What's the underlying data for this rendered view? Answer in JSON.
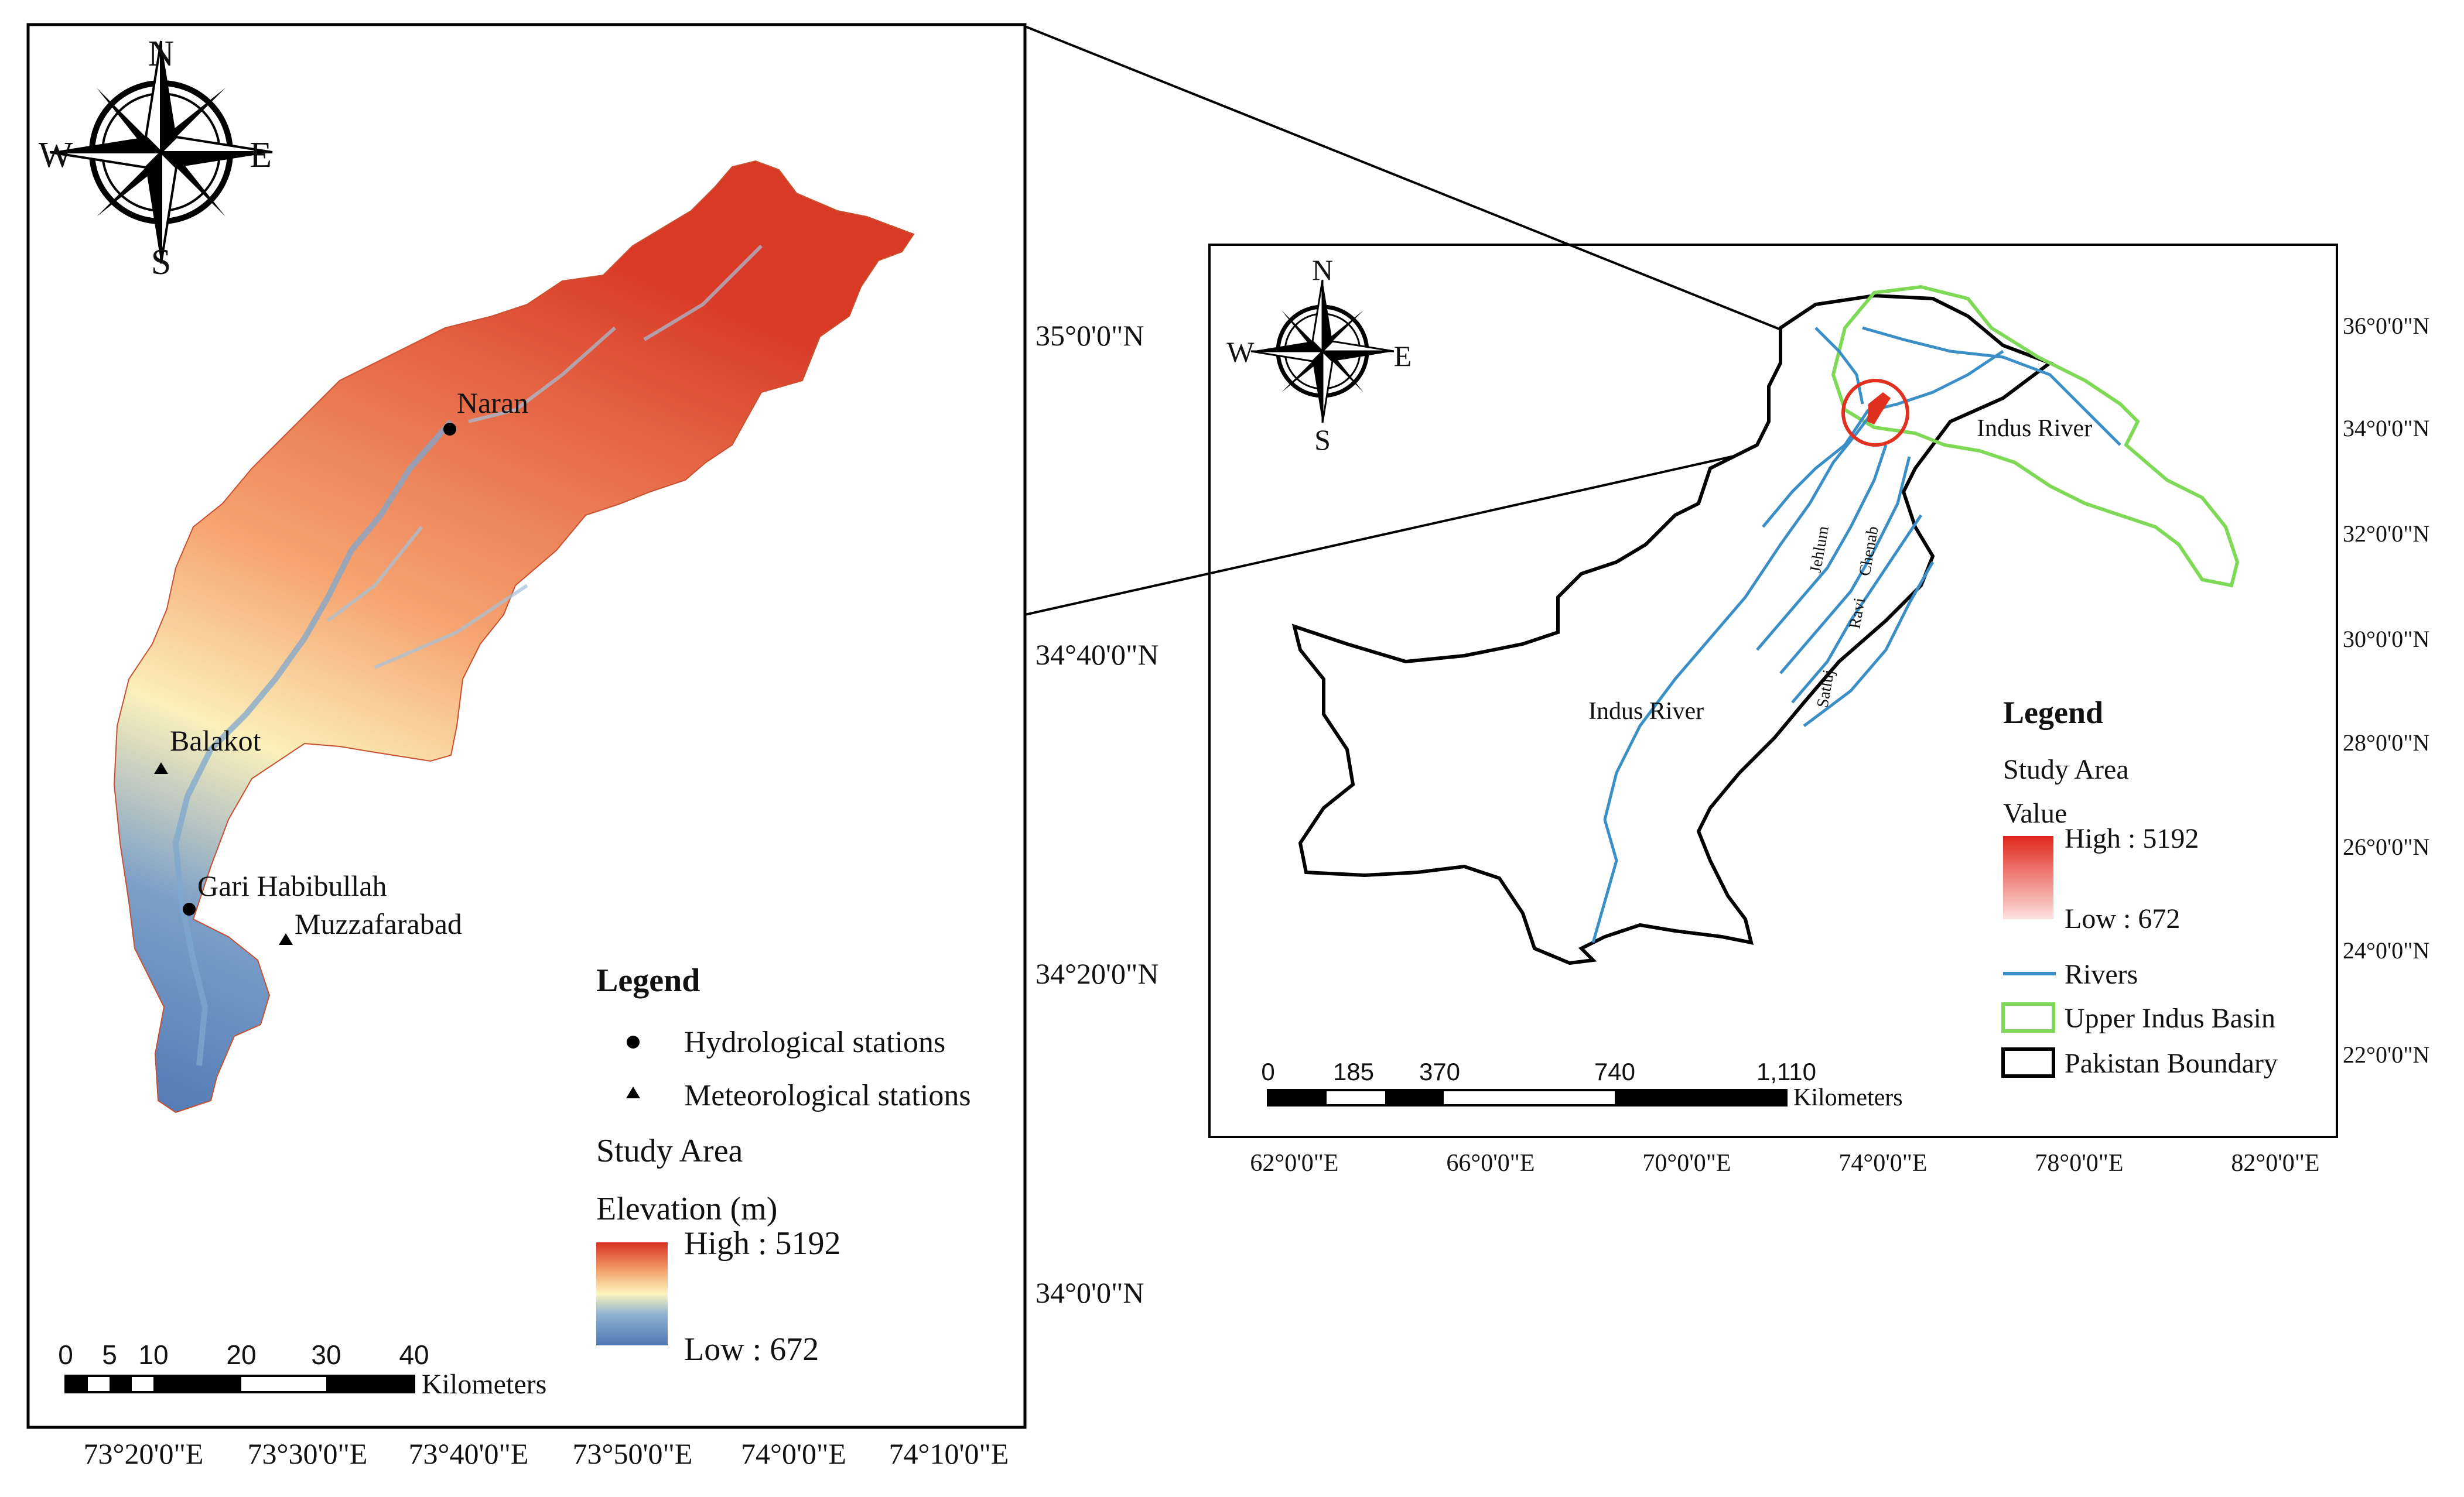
{
  "left_map": {
    "compass": {
      "n": "N",
      "s": "S",
      "e": "E",
      "w": "W"
    },
    "lat_labels": [
      "35°0'0\"N",
      "34°40'0\"N",
      "34°20'0\"N",
      "34°0'0\"N"
    ],
    "lon_labels": [
      "73°20'0\"E",
      "73°30'0\"E",
      "73°40'0\"E",
      "73°50'0\"E",
      "74°0'0\"E",
      "74°10'0\"E"
    ],
    "stations": {
      "naran": "Naran",
      "balakot": "Balakot",
      "gari_habibullah": "Gari Habibullah",
      "muzzafarabad": "Muzzafarabad"
    },
    "legend": {
      "title": "Legend",
      "hydrological": "Hydrological stations",
      "meteorological": "Meteorological stations",
      "study_area": "Study Area",
      "elevation": "Elevation (m)",
      "high": "High : 5192",
      "low": "Low : 672"
    },
    "scale": {
      "ticks": [
        "0",
        "5",
        "10",
        "20",
        "30",
        "40"
      ],
      "unit": "Kilometers"
    },
    "colors": {
      "high": "#d7301f",
      "mid": "#fbf5c0",
      "low": "#4f78b4"
    }
  },
  "right_map": {
    "compass": {
      "n": "N",
      "s": "S",
      "e": "E",
      "w": "W"
    },
    "lat_labels": [
      "36°0'0\"N",
      "34°0'0\"N",
      "32°0'0\"N",
      "30°0'0\"N",
      "28°0'0\"N",
      "26°0'0\"N",
      "24°0'0\"N",
      "22°0'0\"N"
    ],
    "lon_labels": [
      "62°0'0\"E",
      "66°0'0\"E",
      "70°0'0\"E",
      "74°0'0\"E",
      "78°0'0\"E",
      "82°0'0\"E"
    ],
    "rivers": {
      "indus_upper": "Indus River",
      "indus_lower": "Indus River",
      "jehlum": "Jehlum",
      "chenab": "Chenab",
      "ravi": "Ravi",
      "satluj": "Satluj"
    },
    "legend": {
      "title": "Legend",
      "study_area": "Study Area",
      "value": "Value",
      "high": "High : 5192",
      "low": "Low : 672",
      "rivers": "Rivers",
      "uib": "Upper Indus Basin",
      "boundary": "Pakistan Boundary"
    },
    "scale": {
      "ticks": [
        "0",
        "185",
        "370",
        "740",
        "1,110"
      ],
      "unit": "Kilometers"
    },
    "colors": {
      "rivers": "#3a8fc7",
      "uib": "#7ed957",
      "boundary": "#000000",
      "study": "#e03020"
    }
  }
}
